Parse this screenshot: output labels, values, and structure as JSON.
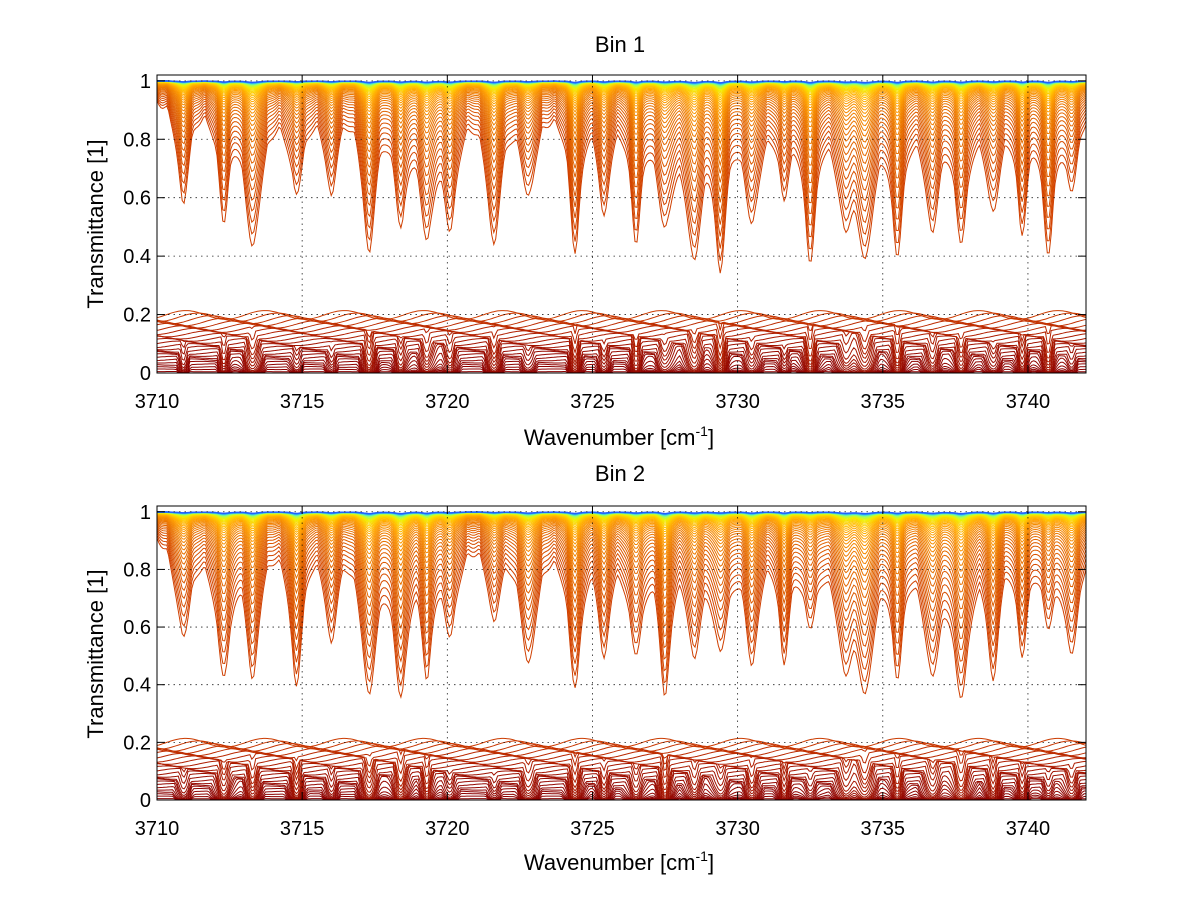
{
  "chart_data": [
    {
      "type": "line",
      "title": "Bin 1",
      "xlabel": "Wavenumber [cm",
      "xlabel_sup": "-1",
      "xlabel_end": "]",
      "ylabel": "Transmittance [1]",
      "xlim": [
        3710,
        3742
      ],
      "ylim": [
        0,
        1.02
      ],
      "xticks": [
        3710,
        3715,
        3720,
        3725,
        3730,
        3735,
        3740
      ],
      "xtick_labels": [
        "3710",
        "3715",
        "3720",
        "3725",
        "3730",
        "3735",
        "3740"
      ],
      "yticks": [
        0,
        0.2,
        0.4,
        0.6,
        0.8,
        1
      ],
      "ytick_labels": [
        "0",
        "0.2",
        "0.4",
        "0.6",
        "0.8",
        "1"
      ],
      "grid": true,
      "legend": "none",
      "series_count": 70,
      "absorption_lines_cm1": [
        3710.9,
        3712.3,
        3713.3,
        3714.8,
        3716.0,
        3717.3,
        3718.4,
        3719.3,
        3720.1,
        3721.6,
        3722.8,
        3724.4,
        3725.4,
        3726.5,
        3727.5,
        3728.5,
        3729.4,
        3730.5,
        3731.6,
        3732.5,
        3733.7,
        3734.4,
        3735.5,
        3736.7,
        3737.7,
        3738.8,
        3739.8,
        3740.7,
        3741.5
      ],
      "colormap": [
        "#8b0000",
        "#b22000",
        "#d04000",
        "#e06000",
        "#f08000",
        "#ffa000",
        "#ffc800",
        "#f0f000",
        "#a0ff60",
        "#40e0e0",
        "#2060ff"
      ]
    },
    {
      "type": "line",
      "title": "Bin 2",
      "xlabel": "Wavenumber [cm",
      "xlabel_sup": "-1",
      "xlabel_end": "]",
      "ylabel": "Transmittance [1]",
      "xlim": [
        3710,
        3742
      ],
      "ylim": [
        0,
        1.02
      ],
      "xticks": [
        3710,
        3715,
        3720,
        3725,
        3730,
        3735,
        3740
      ],
      "xtick_labels": [
        "3710",
        "3715",
        "3720",
        "3725",
        "3730",
        "3735",
        "3740"
      ],
      "yticks": [
        0,
        0.2,
        0.4,
        0.6,
        0.8,
        1
      ],
      "ytick_labels": [
        "0",
        "0.2",
        "0.4",
        "0.6",
        "0.8",
        "1"
      ],
      "grid": true,
      "legend": "none",
      "series_count": 70,
      "absorption_lines_cm1": [
        3710.9,
        3712.3,
        3713.3,
        3714.8,
        3716.0,
        3717.3,
        3718.4,
        3719.3,
        3720.1,
        3721.6,
        3722.8,
        3724.4,
        3725.4,
        3726.5,
        3727.5,
        3728.5,
        3729.4,
        3730.5,
        3731.6,
        3732.5,
        3733.7,
        3734.4,
        3735.5,
        3736.7,
        3737.7,
        3738.8,
        3739.8,
        3740.7,
        3741.5
      ],
      "colormap": [
        "#8b0000",
        "#b22000",
        "#d04000",
        "#e06000",
        "#f08000",
        "#ffa000",
        "#ffc800",
        "#f0f000",
        "#a0ff60",
        "#40e0e0",
        "#2060ff"
      ]
    }
  ]
}
